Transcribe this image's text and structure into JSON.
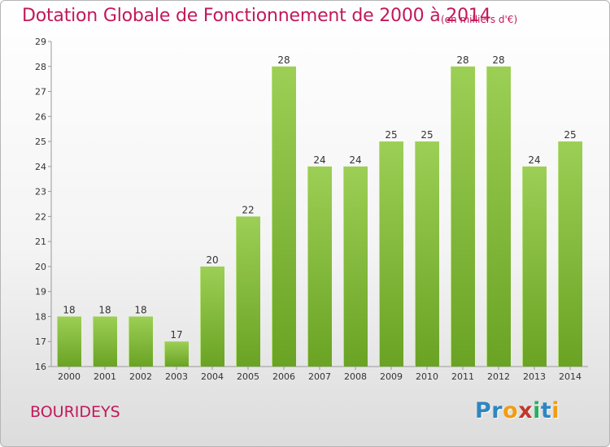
{
  "title": "Dotation Globale de Fonctionnement de 2000 à 2014",
  "subtitle": "(en milliers d'€)",
  "commune": "BOURIDEYS",
  "logo": {
    "letters": [
      "P",
      "r",
      "o",
      "x",
      "i",
      "t",
      "i"
    ],
    "colors": [
      "#2e86c1",
      "#2e86c1",
      "#f39c12",
      "#c0392b",
      "#27ae60",
      "#2e86c1",
      "#f39c12"
    ]
  },
  "colors": {
    "title": "#c2185b",
    "bar_light": "#9ccf55",
    "bar_dark": "#6aa324"
  },
  "chart_data": {
    "type": "bar",
    "categories": [
      "2000",
      "2001",
      "2002",
      "2003",
      "2004",
      "2005",
      "2006",
      "2007",
      "2008",
      "2009",
      "2010",
      "2011",
      "2012",
      "2013",
      "2014"
    ],
    "values": [
      18,
      18,
      18,
      17,
      20,
      22,
      28,
      24,
      24,
      25,
      25,
      28,
      28,
      24,
      25
    ],
    "ylim": [
      16,
      29
    ],
    "yticks": [
      16,
      17,
      18,
      19,
      20,
      21,
      22,
      23,
      24,
      25,
      26,
      27,
      28,
      29
    ],
    "data_labels": true,
    "grid": false,
    "legend": "none"
  }
}
